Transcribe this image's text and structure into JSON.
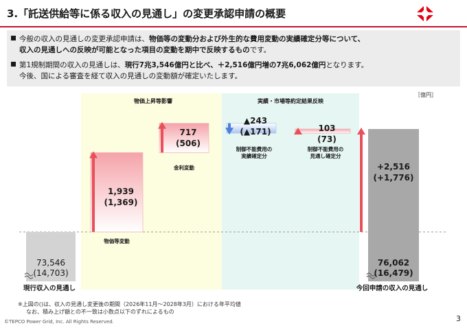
{
  "title": "3.「託送供給等に係る収入の見通し」の変更承認申請の概要",
  "summary": {
    "line1_pre": "今般の収入の見通しの変更承認申請は、",
    "line1_bold": "物価等の変動分および外生的な費用変動の実績確定分等について、",
    "line2_bold": "収入の見通しへの反映が可能となった項目の変動を期中で反映するもの",
    "line2_post": "です。",
    "line3_pre": "第1規制期間の収入の見通しは、",
    "line3_bold1": "現行7兆3,546億円と比べ、＋2,516億円増の7兆6,062億円",
    "line3_post": "となります。",
    "line4": "今後、国による審査を経て収入の見通しの変動額が確定いたします。"
  },
  "chart_data": {
    "type": "bar",
    "subtype": "waterfall",
    "unit": "［億円］",
    "sections": [
      {
        "label": "物価上昇等影響",
        "color": "#fdfde0"
      },
      {
        "label": "実績・市場等約定結果反映",
        "color": "#e6f6f2"
      }
    ],
    "steps": [
      {
        "key": "current",
        "label": "現行収入の見通し",
        "value": 73546,
        "value_label": "73,546",
        "sub_label": "(14,703)",
        "kind": "total",
        "color": "#d3d3d3"
      },
      {
        "key": "price",
        "label": "物価等変動",
        "value": 1939,
        "value_label": "1,939",
        "sub_label": "(1,369)",
        "kind": "increase",
        "color": "#e8505b"
      },
      {
        "key": "interest",
        "label": "金利変動",
        "value": 717,
        "value_label": "717",
        "sub_label": "(506)",
        "kind": "increase",
        "color": "#e8505b"
      },
      {
        "key": "uncontrollable_actual",
        "label": "制御不能費用の実績確定分",
        "value": -243,
        "value_label": "▲243",
        "sub_label": "(▲171)",
        "kind": "decrease",
        "color": "#4f7fd6"
      },
      {
        "key": "uncontrollable_forecast",
        "label": "制御不能費用の見通し確定分",
        "value": 103,
        "value_label": "103",
        "sub_label": "(73)",
        "kind": "increase",
        "color": "#e8505b"
      },
      {
        "key": "new",
        "label": "今回申請の収入の見通し",
        "value": 76062,
        "value_label": "76,062",
        "sub_label": "(16,479)",
        "kind": "total",
        "color": "#a8a8a8"
      }
    ],
    "total_change": {
      "value": 2516,
      "value_label": "+2,516",
      "sub_label": "(+1,776)"
    },
    "ylim": [
      73200,
      76200
    ],
    "grid": false
  },
  "footnote": {
    "line1": "※上図の()は、収入の見通し変更後の期間（2026年11月～2028年3月）における年平均値",
    "line2": "なお、積み上げ額との不一致は小数点以下のずれによるもの"
  },
  "copyright": "©TEPCO Power Grid, Inc. All Rights Reserved.",
  "page_number": "3"
}
